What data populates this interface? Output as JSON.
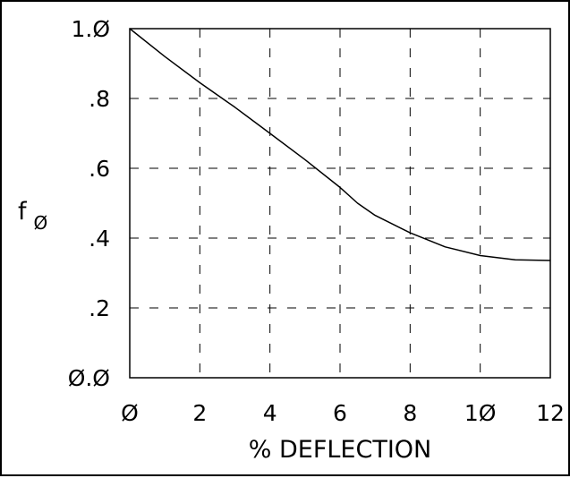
{
  "chart_data": {
    "type": "line",
    "title": "",
    "xlabel": "% DEFLECTION",
    "ylabel": {
      "main": "f",
      "sub": "Ø"
    },
    "xlim": [
      0,
      12
    ],
    "ylim": [
      0,
      1
    ],
    "grid": true,
    "grid_style": "dashed",
    "x_ticks": [
      0,
      2,
      4,
      6,
      8,
      10,
      12
    ],
    "x_tick_labels": [
      "Ø",
      "2",
      "4",
      "6",
      "8",
      "1Ø",
      "12"
    ],
    "y_ticks": [
      0,
      0.2,
      0.4,
      0.6,
      0.8,
      1.0
    ],
    "y_tick_labels": [
      "Ø.Ø",
      ".2",
      ".4",
      ".6",
      ".8",
      "1.Ø"
    ],
    "series": [
      {
        "color": "#000000",
        "x": [
          0,
          1,
          2,
          3,
          4,
          5,
          6,
          6.5,
          7,
          8,
          9,
          10,
          11,
          12
        ],
        "y": [
          1.0,
          0.92,
          0.845,
          0.775,
          0.7,
          0.625,
          0.545,
          0.5,
          0.465,
          0.415,
          0.375,
          0.35,
          0.338,
          0.336
        ]
      }
    ]
  }
}
